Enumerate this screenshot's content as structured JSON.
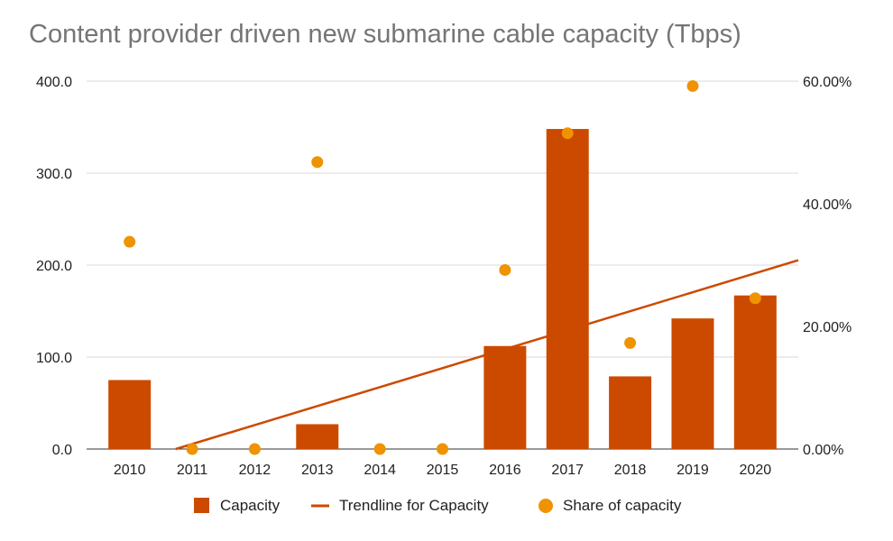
{
  "chart_data": {
    "type": "bar",
    "title": "Content provider driven new submarine cable capacity (Tbps)",
    "categories": [
      "2010",
      "2011",
      "2012",
      "2013",
      "2014",
      "2015",
      "2016",
      "2017",
      "2018",
      "2019",
      "2020"
    ],
    "series": [
      {
        "name": "Capacity",
        "type": "bar",
        "axis": "left",
        "color": "#cc4a00",
        "values": [
          75,
          0,
          0,
          27,
          0,
          0,
          112,
          348,
          79,
          142,
          167
        ]
      },
      {
        "name": "Share of capacity",
        "type": "scatter",
        "axis": "right",
        "color": "#ef9300",
        "values": [
          33.8,
          0,
          0,
          46.8,
          0,
          0,
          29.2,
          51.5,
          17.3,
          59.2,
          24.6
        ]
      }
    ],
    "trendline": {
      "name": "Trendline for Capacity",
      "color": "#cc4a00",
      "start": -15.2,
      "end": 191.1
    },
    "y_left": {
      "min": 0,
      "max": 400,
      "ticks": [
        "0.0",
        "100.0",
        "200.0",
        "300.0",
        "400.0"
      ]
    },
    "y_right": {
      "min": 0,
      "max": 60,
      "ticks": [
        "0.00%",
        "20.00%",
        "40.00%",
        "60.00%"
      ]
    },
    "grid": true,
    "legend": {
      "position": "bottom",
      "items": [
        "Capacity",
        "Trendline for Capacity",
        "Share of capacity"
      ]
    }
  }
}
